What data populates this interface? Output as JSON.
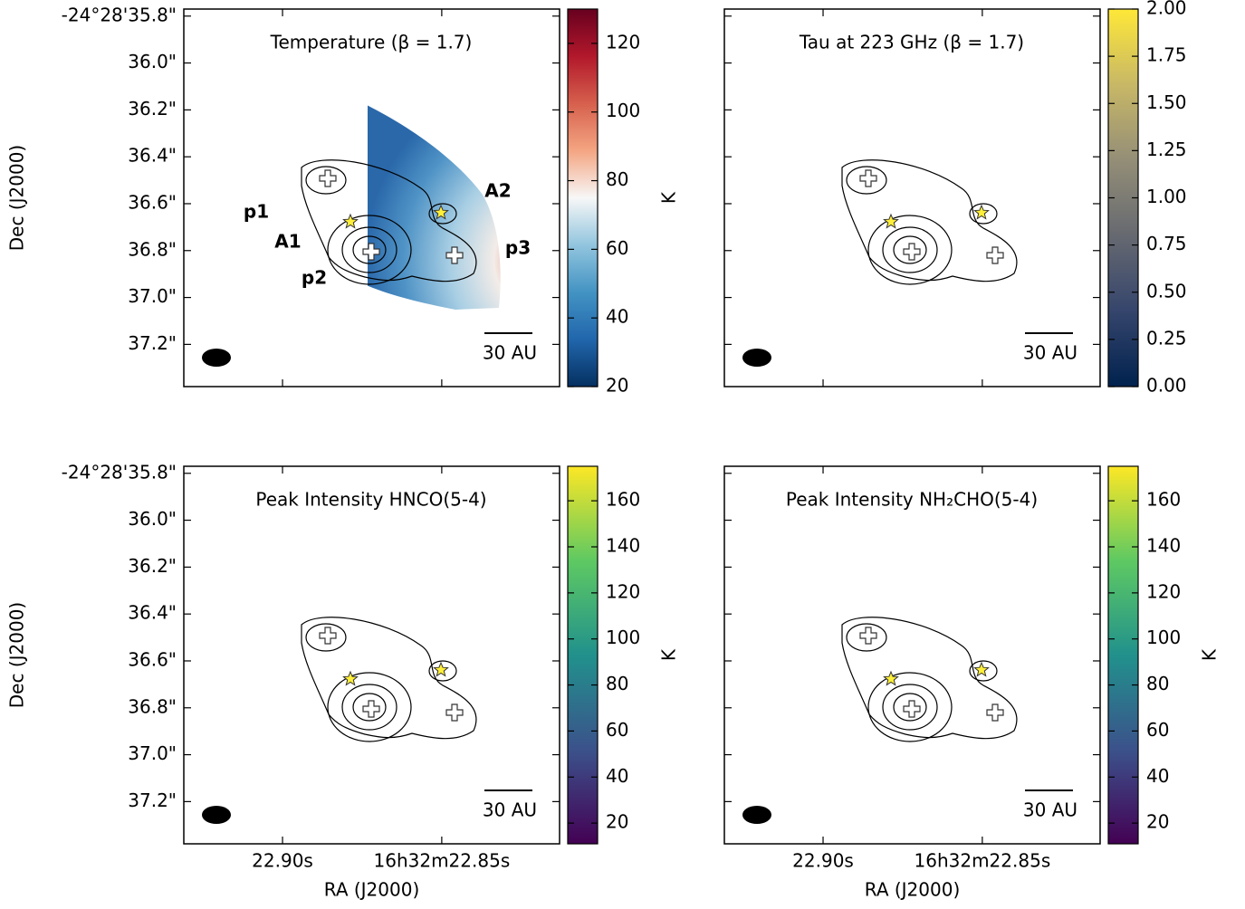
{
  "chart_data": [
    {
      "type": "heatmap",
      "title": "Temperature (β = 1.7)",
      "colormap": "RdBu_r",
      "colorbar": {
        "label": "K",
        "lim": [
          20,
          130
        ],
        "ticks": [
          20,
          40,
          60,
          80,
          100,
          120
        ]
      },
      "xlim": [
        22.931,
        22.813
      ],
      "xticks": [
        22.9,
        22.85
      ],
      "ylim": [
        37.38,
        35.77
      ],
      "ylabel": "Dec (J2000)",
      "yticks": [
        {
          "value": 35.8,
          "label": "-24°28'35.8\""
        },
        {
          "value": 36.0,
          "label": "36.0\""
        },
        {
          "value": 36.2,
          "label": "36.2\""
        },
        {
          "value": 36.4,
          "label": "36.4\""
        },
        {
          "value": 36.6,
          "label": "36.6\""
        },
        {
          "value": 36.8,
          "label": "36.8\""
        },
        {
          "value": 37.0,
          "label": "37.0\""
        },
        {
          "value": 37.2,
          "label": "37.2\""
        }
      ],
      "scalebar_label": "30 AU",
      "annotations": [
        "A1",
        "A2",
        "p1",
        "p2",
        "p3"
      ]
    },
    {
      "type": "heatmap",
      "title": "Tau at 223 GHz (β = 1.7)",
      "colormap": "cividis",
      "colorbar": {
        "lim": [
          0,
          2
        ],
        "ticks": [
          {
            "value": 0,
            "label": "0.00"
          },
          {
            "value": 0.25,
            "label": "0.25"
          },
          {
            "value": 0.5,
            "label": "0.50"
          },
          {
            "value": 0.75,
            "label": "0.75"
          },
          {
            "value": 1,
            "label": "1.00"
          },
          {
            "value": 1.25,
            "label": "1.25"
          },
          {
            "value": 1.5,
            "label": "1.50"
          },
          {
            "value": 1.75,
            "label": "1.75"
          },
          {
            "value": 2,
            "label": "2.00"
          }
        ]
      },
      "xlim": [
        22.931,
        22.813
      ],
      "xticks": [
        22.9,
        22.85
      ],
      "ylim": [
        37.38,
        35.77
      ],
      "yticks": [
        35.8,
        36.0,
        36.2,
        36.4,
        36.6,
        36.8,
        37.0,
        37.2
      ],
      "scalebar_label": "30 AU"
    },
    {
      "type": "heatmap",
      "title": "Peak Intensity HNCO(5-4)",
      "colormap": "viridis",
      "colorbar": {
        "label": "K",
        "lim": [
          11,
          175
        ],
        "ticks": [
          20,
          40,
          60,
          80,
          100,
          120,
          140,
          160
        ]
      },
      "xlim": [
        22.931,
        22.813
      ],
      "xlabel": "RA (J2000)",
      "xticks": [
        {
          "value": 22.9,
          "label": "22.90s"
        },
        {
          "value": 22.85,
          "label": "16h32m22.85s"
        }
      ],
      "ylim": [
        37.38,
        35.77
      ],
      "ylabel": "Dec (J2000)",
      "yticks": [
        {
          "value": 35.8,
          "label": "-24°28'35.8\""
        },
        {
          "value": 36.0,
          "label": "36.0\""
        },
        {
          "value": 36.2,
          "label": "36.2\""
        },
        {
          "value": 36.4,
          "label": "36.4\""
        },
        {
          "value": 36.6,
          "label": "36.6\""
        },
        {
          "value": 36.8,
          "label": "36.8\""
        },
        {
          "value": 37.0,
          "label": "37.0\""
        },
        {
          "value": 37.2,
          "label": "37.2\""
        }
      ],
      "scalebar_label": "30 AU"
    },
    {
      "type": "heatmap",
      "title": "Peak Intensity NH₂CHO(5-4)",
      "colormap": "viridis",
      "colorbar": {
        "label": "K",
        "lim": [
          11,
          175
        ],
        "ticks": [
          20,
          40,
          60,
          80,
          100,
          120,
          140,
          160
        ]
      },
      "xlim": [
        22.931,
        22.813
      ],
      "xlabel": "RA (J2000)",
      "xticks": [
        {
          "value": 22.9,
          "label": "22.90s"
        },
        {
          "value": 22.85,
          "label": "16h32m22.85s"
        }
      ],
      "ylim": [
        37.38,
        35.77
      ],
      "yticks": [
        35.8,
        36.0,
        36.2,
        36.4,
        36.6,
        36.8,
        37.0,
        37.2
      ],
      "scalebar_label": "30 AU"
    }
  ]
}
